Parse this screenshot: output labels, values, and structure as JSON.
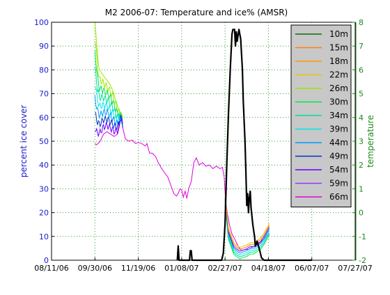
{
  "chart_data": {
    "type": "line",
    "title": "M2 2006-07: Temperature and ice% (AMSR)",
    "ylabel_left": "percent ice cover",
    "ylabel_right": "temperature",
    "ylim_left": [
      0,
      100
    ],
    "ylim_right": [
      -2,
      8
    ],
    "left_axis_color": "#1a1acc",
    "right_axis_color": "#1a8a1a",
    "x_ticks": [
      "08/11/06",
      "09/30/06",
      "11/19/06",
      "01/08/07",
      "02/27/07",
      "04/18/07",
      "06/07/07",
      "07/27/07"
    ],
    "y_ticks_left": [
      0,
      10,
      20,
      30,
      40,
      50,
      60,
      70,
      80,
      90,
      100
    ],
    "y_ticks_right": [
      -2,
      -1,
      0,
      1,
      2,
      3,
      4,
      5,
      6,
      7,
      8
    ],
    "grid": true,
    "legend_position": "top-right",
    "ice_series": {
      "name": "",
      "color": "#000000",
      "points": [
        [
          "01/03/07",
          0
        ],
        [
          "01/04/07",
          6
        ],
        [
          "01/05/07",
          0
        ],
        [
          "01/17/07",
          0
        ],
        [
          "01/18/07",
          4
        ],
        [
          "01/19/07",
          4
        ],
        [
          "01/20/07",
          0
        ],
        [
          "02/23/07",
          0
        ],
        [
          "02/25/07",
          3
        ],
        [
          "02/27/07",
          15
        ],
        [
          "03/01/07",
          40
        ],
        [
          "03/03/07",
          62
        ],
        [
          "03/05/07",
          80
        ],
        [
          "03/07/07",
          95
        ],
        [
          "03/08/07",
          97
        ],
        [
          "03/10/07",
          97
        ],
        [
          "03/11/07",
          90
        ],
        [
          "03/12/07",
          96
        ],
        [
          "03/13/07",
          92
        ],
        [
          "03/15/07",
          97
        ],
        [
          "03/17/07",
          93
        ],
        [
          "03/19/07",
          80
        ],
        [
          "03/20/07",
          67
        ],
        [
          "03/22/07",
          50
        ],
        [
          "03/23/07",
          38
        ],
        [
          "03/24/07",
          23
        ],
        [
          "03/25/07",
          28
        ],
        [
          "03/26/07",
          20
        ],
        [
          "03/27/07",
          26
        ],
        [
          "03/28/07",
          29
        ],
        [
          "03/29/07",
          22
        ],
        [
          "03/31/07",
          15
        ],
        [
          "04/02/07",
          10
        ],
        [
          "04/03/07",
          6
        ],
        [
          "04/05/07",
          8
        ],
        [
          "04/08/07",
          4
        ],
        [
          "04/10/07",
          1
        ],
        [
          "04/13/07",
          0
        ],
        [
          "06/07/07",
          0
        ]
      ]
    },
    "temperature_series": [
      {
        "name": "10m",
        "color": "#0a6a0a"
      },
      {
        "name": "15m",
        "color": "#ff7f0e"
      },
      {
        "name": "18m",
        "color": "#ff9900"
      },
      {
        "name": "22m",
        "color": "#e8c300"
      },
      {
        "name": "26m",
        "color": "#9ae600"
      },
      {
        "name": "30m",
        "color": "#00e64d"
      },
      {
        "name": "34m",
        "color": "#00dca0"
      },
      {
        "name": "39m",
        "color": "#00e6e6"
      },
      {
        "name": "44m",
        "color": "#0099ff"
      },
      {
        "name": "49m",
        "color": "#0033cc"
      },
      {
        "name": "54m",
        "color": "#6600ff"
      },
      {
        "name": "59m",
        "color": "#9933ff"
      },
      {
        "name": "66m",
        "color": "#dd00dd"
      }
    ],
    "temperature_traces": {
      "deep_66m": [
        [
          "09/30/06",
          2.9
        ],
        [
          "10/02/06",
          2.85
        ],
        [
          "10/06/06",
          3.0
        ],
        [
          "10/10/06",
          3.3
        ],
        [
          "10/14/06",
          3.4
        ],
        [
          "10/18/06",
          3.3
        ],
        [
          "10/22/06",
          3.2
        ],
        [
          "10/26/06",
          3.3
        ],
        [
          "10/28/06",
          3.6
        ],
        [
          "10/30/06",
          4.0
        ],
        [
          "11/01/06",
          3.6
        ],
        [
          "11/04/06",
          3.1
        ],
        [
          "11/08/06",
          3.0
        ],
        [
          "11/12/06",
          3.05
        ],
        [
          "11/16/06",
          2.9
        ],
        [
          "11/19/06",
          2.95
        ],
        [
          "11/23/06",
          2.9
        ],
        [
          "11/27/06",
          2.8
        ],
        [
          "11/29/06",
          2.9
        ],
        [
          "12/02/06",
          2.5
        ],
        [
          "12/05/06",
          2.5
        ],
        [
          "12/09/06",
          2.35
        ],
        [
          "12/12/06",
          2.1
        ],
        [
          "12/16/06",
          1.85
        ],
        [
          "12/19/06",
          1.7
        ],
        [
          "12/23/06",
          1.5
        ],
        [
          "12/27/06",
          1.1
        ],
        [
          "12/30/06",
          0.8
        ],
        [
          "01/02/07",
          0.7
        ],
        [
          "01/04/07",
          0.8
        ],
        [
          "01/06/07",
          1.0
        ],
        [
          "01/08/07",
          0.95
        ],
        [
          "01/10/07",
          0.65
        ],
        [
          "01/12/07",
          0.9
        ],
        [
          "01/14/07",
          0.6
        ],
        [
          "01/16/07",
          1.0
        ],
        [
          "01/19/07",
          1.3
        ],
        [
          "01/22/07",
          2.1
        ],
        [
          "01/25/07",
          2.3
        ],
        [
          "01/28/07",
          2.0
        ],
        [
          "02/01/07",
          2.1
        ],
        [
          "02/05/07",
          1.95
        ],
        [
          "02/09/07",
          2.0
        ],
        [
          "02/13/07",
          1.85
        ],
        [
          "02/17/07",
          1.95
        ],
        [
          "02/21/07",
          1.85
        ],
        [
          "02/24/07",
          1.9
        ],
        [
          "02/26/07",
          1.5
        ],
        [
          "02/27/07",
          0.9
        ],
        [
          "02/28/07",
          0.4
        ],
        [
          "03/02/07",
          -0.1
        ],
        [
          "03/04/07",
          -0.5
        ],
        [
          "03/07/07",
          -0.9
        ],
        [
          "03/10/07",
          -1.1
        ],
        [
          "03/14/07",
          -1.4
        ],
        [
          "03/18/07",
          -1.6
        ],
        [
          "03/22/07",
          -1.55
        ],
        [
          "03/26/07",
          -1.55
        ],
        [
          "03/30/07",
          -1.45
        ],
        [
          "04/03/07",
          -1.4
        ],
        [
          "04/07/07",
          -1.3
        ],
        [
          "04/10/07",
          -1.2
        ],
        [
          "04/13/07",
          -1.1
        ],
        [
          "04/16/07",
          -1.0
        ],
        [
          "04/19/07",
          -0.9
        ]
      ],
      "upper_envelope": [
        [
          "09/30/06",
          8.0
        ],
        [
          "10/01/06",
          7.6
        ],
        [
          "10/03/06",
          6.6
        ],
        [
          "10/05/06",
          6.0
        ],
        [
          "10/09/06",
          5.8
        ],
        [
          "10/13/06",
          5.6
        ],
        [
          "10/17/06",
          5.4
        ],
        [
          "10/21/06",
          5.1
        ],
        [
          "10/25/06",
          4.6
        ],
        [
          "10/29/06",
          4.2
        ],
        [
          "11/01/06",
          4.0
        ]
      ],
      "spring_surface": [
        [
          "02/27/07",
          0.5
        ],
        [
          "03/01/07",
          -0.2
        ],
        [
          "03/03/07",
          -0.9
        ],
        [
          "03/06/07",
          -1.2
        ],
        [
          "03/09/07",
          -1.5
        ],
        [
          "03/12/07",
          -1.6
        ],
        [
          "03/16/07",
          -1.7
        ],
        [
          "03/20/07",
          -1.65
        ],
        [
          "03/24/07",
          -1.6
        ],
        [
          "03/28/07",
          -1.5
        ],
        [
          "04/01/07",
          -1.5
        ],
        [
          "04/05/07",
          -1.4
        ],
        [
          "04/09/07",
          -1.3
        ],
        [
          "04/13/07",
          -1.1
        ],
        [
          "04/16/07",
          -0.9
        ],
        [
          "04/19/07",
          -0.7
        ]
      ]
    }
  }
}
